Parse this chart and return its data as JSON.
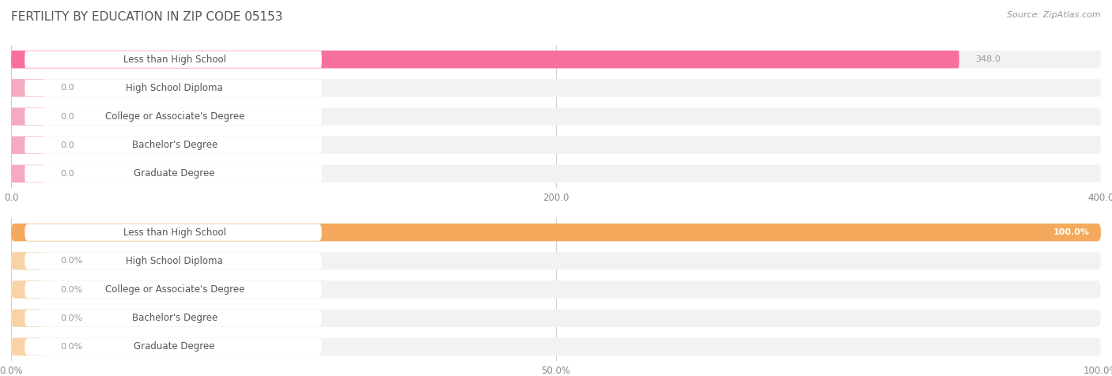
{
  "title": "FERTILITY BY EDUCATION IN ZIP CODE 05153",
  "source": "Source: ZipAtlas.com",
  "categories": [
    "Less than High School",
    "High School Diploma",
    "College or Associate's Degree",
    "Bachelor's Degree",
    "Graduate Degree"
  ],
  "values_count": [
    348.0,
    0.0,
    0.0,
    0.0,
    0.0
  ],
  "values_pct": [
    100.0,
    0.0,
    0.0,
    0.0,
    0.0
  ],
  "xlim_count": [
    0,
    400
  ],
  "xlim_pct": [
    0,
    100
  ],
  "xticks_count": [
    0.0,
    200.0,
    400.0
  ],
  "xticks_pct": [
    0.0,
    50.0,
    100.0
  ],
  "xtick_labels_count": [
    "0.0",
    "200.0",
    "400.0"
  ],
  "xtick_labels_pct": [
    "0.0%",
    "50.0%",
    "100.0%"
  ],
  "bar_color_top": "#F8719D",
  "bar_color_top_zero": "#F4AABF",
  "bar_color_bottom": "#F5A95C",
  "bar_color_bottom_zero": "#F9D3A8",
  "background_color": "#ffffff",
  "bar_bg_color": "#efefef",
  "row_bg_color": "#f2f2f2",
  "title_color": "#555555",
  "source_color": "#999999",
  "label_text_color": "#555555",
  "zero_value_color": "#999999",
  "label_font_size": 8.5,
  "title_font_size": 11,
  "source_font_size": 8,
  "bar_height": 0.62,
  "bar_value_fontsize": 8
}
